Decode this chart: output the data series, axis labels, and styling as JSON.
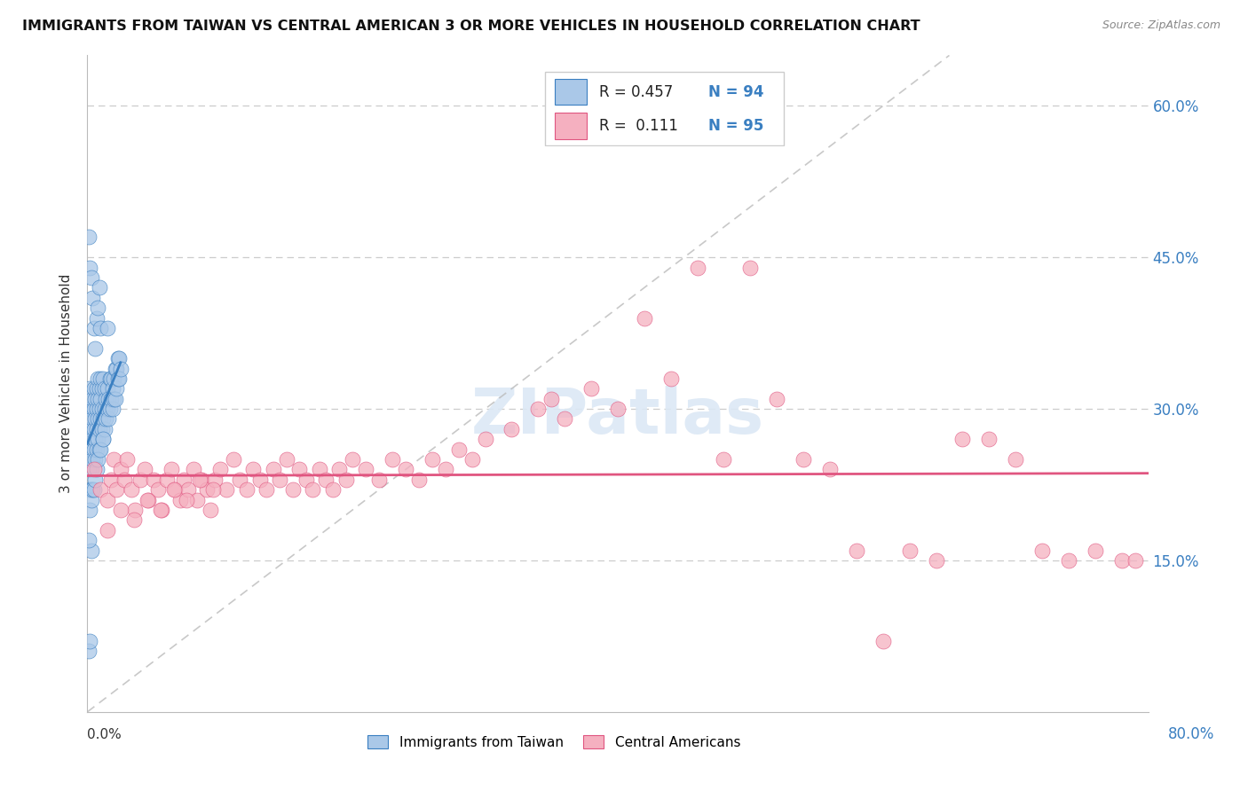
{
  "title": "IMMIGRANTS FROM TAIWAN VS CENTRAL AMERICAN 3 OR MORE VEHICLES IN HOUSEHOLD CORRELATION CHART",
  "source": "Source: ZipAtlas.com",
  "ylabel": "3 or more Vehicles in Household",
  "ytick_values": [
    0.15,
    0.3,
    0.45,
    0.6
  ],
  "xlim": [
    0.0,
    0.8
  ],
  "ylim": [
    0.0,
    0.65
  ],
  "taiwan_R": 0.457,
  "taiwan_N": 94,
  "central_R": 0.111,
  "central_N": 95,
  "taiwan_color": "#aac8e8",
  "central_color": "#f5b0c0",
  "taiwan_line_color": "#3a7fc1",
  "central_line_color": "#e05580",
  "diag_color": "#bbbbbb",
  "legend_label_taiwan": "Immigrants from Taiwan",
  "legend_label_central": "Central Americans",
  "taiwan_x": [
    0.001,
    0.001,
    0.002,
    0.002,
    0.002,
    0.002,
    0.003,
    0.003,
    0.003,
    0.003,
    0.003,
    0.004,
    0.004,
    0.004,
    0.004,
    0.005,
    0.005,
    0.005,
    0.005,
    0.006,
    0.006,
    0.006,
    0.006,
    0.007,
    0.007,
    0.007,
    0.007,
    0.008,
    0.008,
    0.008,
    0.008,
    0.009,
    0.009,
    0.009,
    0.009,
    0.01,
    0.01,
    0.01,
    0.011,
    0.011,
    0.011,
    0.012,
    0.012,
    0.012,
    0.013,
    0.013,
    0.013,
    0.014,
    0.014,
    0.015,
    0.015,
    0.016,
    0.016,
    0.017,
    0.017,
    0.018,
    0.018,
    0.019,
    0.019,
    0.02,
    0.02,
    0.021,
    0.021,
    0.022,
    0.022,
    0.023,
    0.023,
    0.024,
    0.024,
    0.025,
    0.001,
    0.002,
    0.003,
    0.004,
    0.005,
    0.006,
    0.007,
    0.008,
    0.009,
    0.01,
    0.001,
    0.002,
    0.003,
    0.001,
    0.002,
    0.003,
    0.004,
    0.005,
    0.006,
    0.007,
    0.008,
    0.01,
    0.012,
    0.015
  ],
  "taiwan_y": [
    0.24,
    0.26,
    0.28,
    0.3,
    0.22,
    0.32,
    0.26,
    0.28,
    0.3,
    0.24,
    0.22,
    0.27,
    0.29,
    0.25,
    0.31,
    0.28,
    0.3,
    0.26,
    0.32,
    0.29,
    0.27,
    0.31,
    0.25,
    0.3,
    0.28,
    0.32,
    0.26,
    0.31,
    0.29,
    0.33,
    0.27,
    0.3,
    0.28,
    0.32,
    0.26,
    0.31,
    0.29,
    0.33,
    0.3,
    0.28,
    0.32,
    0.29,
    0.33,
    0.27,
    0.3,
    0.28,
    0.32,
    0.29,
    0.31,
    0.3,
    0.32,
    0.29,
    0.31,
    0.3,
    0.33,
    0.31,
    0.33,
    0.3,
    0.32,
    0.31,
    0.33,
    0.31,
    0.34,
    0.32,
    0.34,
    0.33,
    0.35,
    0.33,
    0.35,
    0.34,
    0.47,
    0.44,
    0.43,
    0.41,
    0.38,
    0.36,
    0.39,
    0.4,
    0.42,
    0.38,
    0.06,
    0.07,
    0.16,
    0.17,
    0.2,
    0.21,
    0.22,
    0.22,
    0.23,
    0.24,
    0.25,
    0.26,
    0.27,
    0.38
  ],
  "central_x": [
    0.005,
    0.01,
    0.015,
    0.018,
    0.02,
    0.022,
    0.025,
    0.028,
    0.03,
    0.033,
    0.036,
    0.04,
    0.043,
    0.046,
    0.05,
    0.053,
    0.056,
    0.06,
    0.063,
    0.066,
    0.07,
    0.073,
    0.076,
    0.08,
    0.083,
    0.086,
    0.09,
    0.093,
    0.096,
    0.1,
    0.105,
    0.11,
    0.115,
    0.12,
    0.125,
    0.13,
    0.135,
    0.14,
    0.145,
    0.15,
    0.155,
    0.16,
    0.165,
    0.17,
    0.175,
    0.18,
    0.185,
    0.19,
    0.195,
    0.2,
    0.21,
    0.22,
    0.23,
    0.24,
    0.25,
    0.26,
    0.27,
    0.28,
    0.29,
    0.3,
    0.32,
    0.34,
    0.35,
    0.36,
    0.38,
    0.4,
    0.42,
    0.44,
    0.46,
    0.48,
    0.5,
    0.52,
    0.54,
    0.56,
    0.58,
    0.6,
    0.62,
    0.64,
    0.66,
    0.68,
    0.7,
    0.72,
    0.74,
    0.76,
    0.78,
    0.015,
    0.025,
    0.035,
    0.045,
    0.055,
    0.065,
    0.075,
    0.085,
    0.095,
    0.79
  ],
  "central_y": [
    0.24,
    0.22,
    0.21,
    0.23,
    0.25,
    0.22,
    0.24,
    0.23,
    0.25,
    0.22,
    0.2,
    0.23,
    0.24,
    0.21,
    0.23,
    0.22,
    0.2,
    0.23,
    0.24,
    0.22,
    0.21,
    0.23,
    0.22,
    0.24,
    0.21,
    0.23,
    0.22,
    0.2,
    0.23,
    0.24,
    0.22,
    0.25,
    0.23,
    0.22,
    0.24,
    0.23,
    0.22,
    0.24,
    0.23,
    0.25,
    0.22,
    0.24,
    0.23,
    0.22,
    0.24,
    0.23,
    0.22,
    0.24,
    0.23,
    0.25,
    0.24,
    0.23,
    0.25,
    0.24,
    0.23,
    0.25,
    0.24,
    0.26,
    0.25,
    0.27,
    0.28,
    0.3,
    0.31,
    0.29,
    0.32,
    0.3,
    0.39,
    0.33,
    0.44,
    0.25,
    0.44,
    0.31,
    0.25,
    0.24,
    0.16,
    0.07,
    0.16,
    0.15,
    0.27,
    0.27,
    0.25,
    0.16,
    0.15,
    0.16,
    0.15,
    0.18,
    0.2,
    0.19,
    0.21,
    0.2,
    0.22,
    0.21,
    0.23,
    0.22,
    0.15
  ]
}
